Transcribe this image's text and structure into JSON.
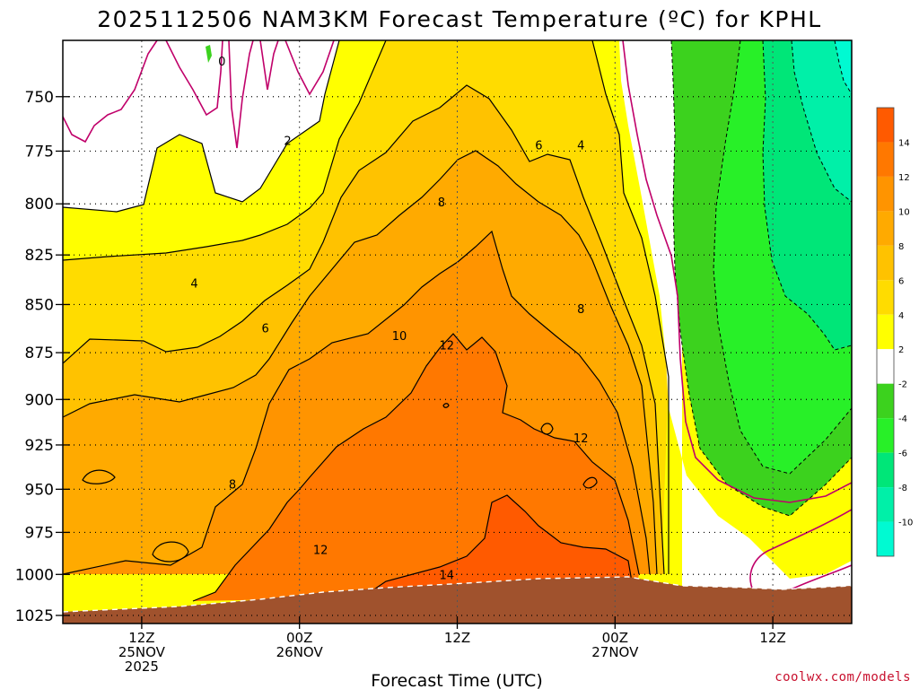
{
  "chart_data": {
    "type": "heatmap",
    "title": "2025112506 NAM3KM Forecast Temperature (ºC) for KPHL",
    "xlabel": "Forecast Time (UTC)",
    "ylabel": "",
    "y_axis": {
      "label": "",
      "scale": "log-pressure",
      "inverted": true,
      "range": [
        725,
        1030
      ],
      "ticks": [
        750,
        775,
        800,
        825,
        850,
        875,
        900,
        925,
        950,
        975,
        1000,
        1025
      ]
    },
    "x_axis": {
      "range_hours": [
        0,
        60
      ],
      "ticks": [
        {
          "hour": 6,
          "lines": [
            "12Z",
            "25NOV",
            "2025"
          ]
        },
        {
          "hour": 18,
          "lines": [
            "00Z",
            "26NOV"
          ]
        },
        {
          "hour": 30,
          "lines": [
            "12Z"
          ]
        },
        {
          "hour": 42,
          "lines": [
            "00Z",
            "27NOV"
          ]
        },
        {
          "hour": 54,
          "lines": [
            "12Z"
          ]
        }
      ]
    },
    "grid": true,
    "colorbar": {
      "placement": "right",
      "bins": [
        {
          "from": 14,
          "to": 16,
          "color": "#ff5a00"
        },
        {
          "from": 12,
          "to": 14,
          "color": "#ff7800"
        },
        {
          "from": 10,
          "to": 12,
          "color": "#ff9400"
        },
        {
          "from": 8,
          "to": 10,
          "color": "#ffaa00"
        },
        {
          "from": 6,
          "to": 8,
          "color": "#ffc200"
        },
        {
          "from": 4,
          "to": 6,
          "color": "#ffdc00"
        },
        {
          "from": 2,
          "to": 4,
          "color": "#ffff00"
        },
        {
          "from": -2,
          "to": 2,
          "color": "#ffffff"
        },
        {
          "from": -4,
          "to": -2,
          "color": "#3cd21e"
        },
        {
          "from": -6,
          "to": -4,
          "color": "#28f028"
        },
        {
          "from": -8,
          "to": -6,
          "color": "#00e678"
        },
        {
          "from": -10,
          "to": -8,
          "color": "#00f0a8"
        },
        {
          "from": -12,
          "to": -10,
          "color": "#00fad2"
        }
      ],
      "tick_labels": [
        "14",
        "12",
        "10",
        "8",
        "6",
        "4",
        "2",
        "-2",
        "-4",
        "-6",
        "-8",
        "-10"
      ]
    },
    "terrain_color": "#a0522d",
    "zero_isotherm_color": "#c0006a",
    "contour_labels": [
      {
        "text": "0",
        "hour": 12.1,
        "p": 734
      },
      {
        "text": "2",
        "hour": 17.1,
        "p": 770
      },
      {
        "text": "4",
        "hour": 10.0,
        "p": 839
      },
      {
        "text": "4",
        "hour": 39.4,
        "p": 772
      },
      {
        "text": "6",
        "hour": 15.4,
        "p": 862
      },
      {
        "text": "6",
        "hour": 36.2,
        "p": 772
      },
      {
        "text": "8",
        "hour": 12.9,
        "p": 947
      },
      {
        "text": "8",
        "hour": 28.8,
        "p": 799
      },
      {
        "text": "8",
        "hour": 39.4,
        "p": 852
      },
      {
        "text": "10",
        "hour": 25.6,
        "p": 866
      },
      {
        "text": "12",
        "hour": 19.6,
        "p": 985
      },
      {
        "text": "12",
        "hour": 29.2,
        "p": 871
      },
      {
        "text": "12",
        "hour": 39.4,
        "p": 921
      },
      {
        "text": "14",
        "hour": 29.2,
        "p": 1000
      }
    ]
  },
  "credit": "coolwx.com/models"
}
